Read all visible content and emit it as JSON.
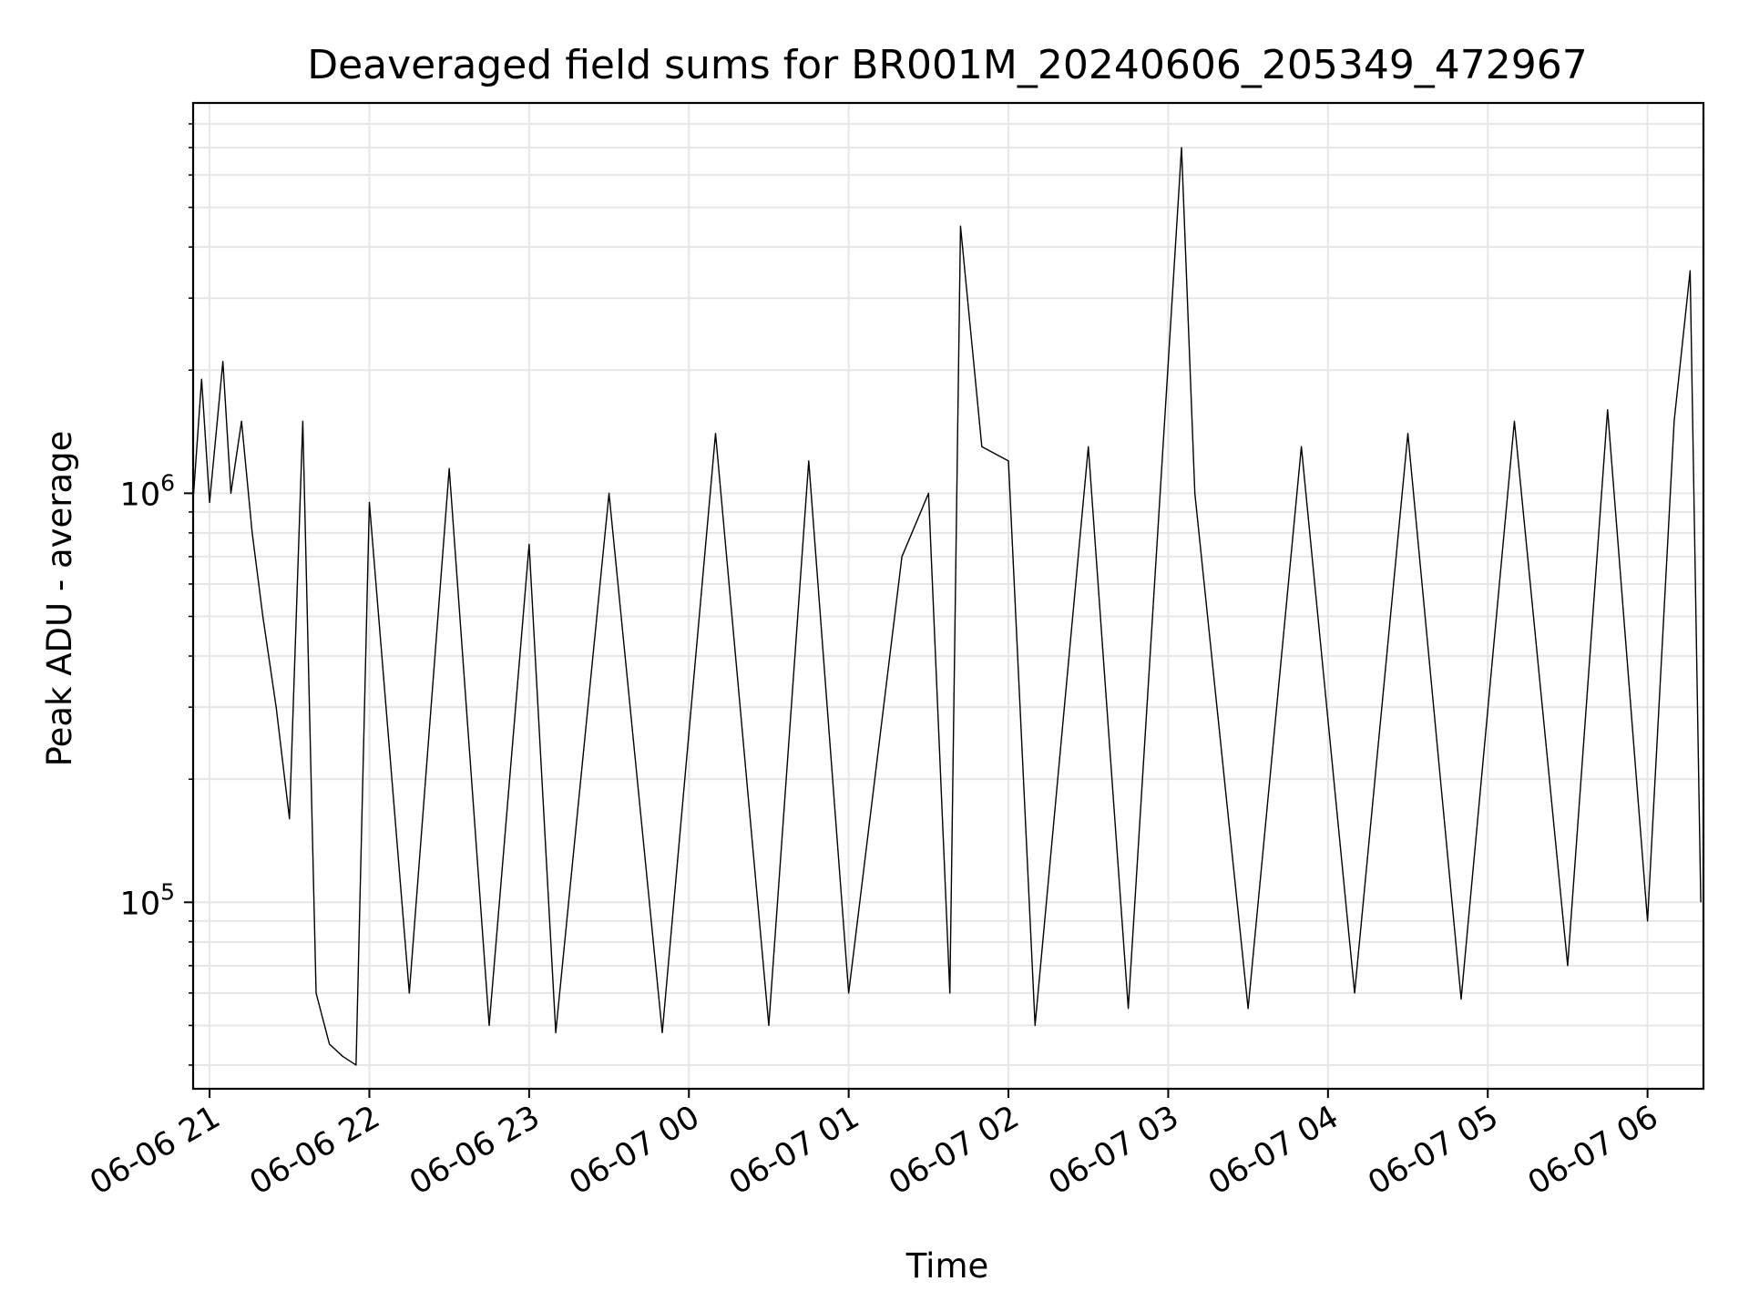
{
  "chart_data": {
    "type": "line",
    "title": "Deaveraged field sums for BR001M_20240606_205349_472967",
    "xlabel": "Time",
    "ylabel": "Peak ADU - average",
    "yscale": "log",
    "ylim": [
      35000,
      9000000
    ],
    "xlim": [
      "2024-06-06 20:53:49",
      "2024-06-07 06:21:00"
    ],
    "x_ticks": [
      {
        "time": "2024-06-06 21:00",
        "label": "06-06 21"
      },
      {
        "time": "2024-06-06 22:00",
        "label": "06-06 22"
      },
      {
        "time": "2024-06-06 23:00",
        "label": "06-06 23"
      },
      {
        "time": "2024-06-07 00:00",
        "label": "06-07 00"
      },
      {
        "time": "2024-06-07 01:00",
        "label": "06-07 01"
      },
      {
        "time": "2024-06-07 02:00",
        "label": "06-07 02"
      },
      {
        "time": "2024-06-07 03:00",
        "label": "06-07 03"
      },
      {
        "time": "2024-06-07 04:00",
        "label": "06-07 04"
      },
      {
        "time": "2024-06-07 05:00",
        "label": "06-07 05"
      },
      {
        "time": "2024-06-07 06:00",
        "label": "06-07 06"
      }
    ],
    "y_ticks": [
      {
        "value": 100000,
        "base": "10",
        "exp": "5"
      },
      {
        "value": 1000000,
        "base": "10",
        "exp": "6"
      }
    ],
    "grid": true,
    "line_color": "#000000",
    "grid_color": "#e6e6e6",
    "series": [
      {
        "values": [
          [
            "2024-06-06 20:54",
            1000000
          ],
          [
            "2024-06-06 20:57",
            1900000
          ],
          [
            "2024-06-06 21:00",
            950000
          ],
          [
            "2024-06-06 21:05",
            2100000
          ],
          [
            "2024-06-06 21:08",
            1000000
          ],
          [
            "2024-06-06 21:12",
            1500000
          ],
          [
            "2024-06-06 21:16",
            800000
          ],
          [
            "2024-06-06 21:20",
            500000
          ],
          [
            "2024-06-06 21:25",
            300000
          ],
          [
            "2024-06-06 21:30",
            160000
          ],
          [
            "2024-06-06 21:35",
            1500000
          ],
          [
            "2024-06-06 21:40",
            60000
          ],
          [
            "2024-06-06 21:45",
            45000
          ],
          [
            "2024-06-06 21:50",
            42000
          ],
          [
            "2024-06-06 21:55",
            40000
          ],
          [
            "2024-06-06 22:00",
            950000
          ],
          [
            "2024-06-06 22:15",
            60000
          ],
          [
            "2024-06-06 22:30",
            1150000
          ],
          [
            "2024-06-06 22:45",
            50000
          ],
          [
            "2024-06-06 23:00",
            750000
          ],
          [
            "2024-06-06 23:10",
            48000
          ],
          [
            "2024-06-06 23:30",
            1000000
          ],
          [
            "2024-06-06 23:50",
            48000
          ],
          [
            "2024-06-07 00:10",
            1400000
          ],
          [
            "2024-06-07 00:30",
            50000
          ],
          [
            "2024-06-07 00:45",
            1200000
          ],
          [
            "2024-06-07 01:00",
            60000
          ],
          [
            "2024-06-07 01:20",
            700000
          ],
          [
            "2024-06-07 01:30",
            1000000
          ],
          [
            "2024-06-07 01:38",
            60000
          ],
          [
            "2024-06-07 01:42",
            4500000
          ],
          [
            "2024-06-07 01:50",
            1300000
          ],
          [
            "2024-06-07 02:00",
            1200000
          ],
          [
            "2024-06-07 02:10",
            50000
          ],
          [
            "2024-06-07 02:30",
            1300000
          ],
          [
            "2024-06-07 02:45",
            55000
          ],
          [
            "2024-06-07 03:05",
            7000000
          ],
          [
            "2024-06-07 03:10",
            1000000
          ],
          [
            "2024-06-07 03:30",
            55000
          ],
          [
            "2024-06-07 03:50",
            1300000
          ],
          [
            "2024-06-07 04:10",
            60000
          ],
          [
            "2024-06-07 04:30",
            1400000
          ],
          [
            "2024-06-07 04:50",
            58000
          ],
          [
            "2024-06-07 05:10",
            1500000
          ],
          [
            "2024-06-07 05:30",
            70000
          ],
          [
            "2024-06-07 05:45",
            1600000
          ],
          [
            "2024-06-07 06:00",
            90000
          ],
          [
            "2024-06-07 06:10",
            1500000
          ],
          [
            "2024-06-07 06:16",
            3500000
          ],
          [
            "2024-06-07 06:20",
            100000
          ]
        ]
      }
    ]
  }
}
